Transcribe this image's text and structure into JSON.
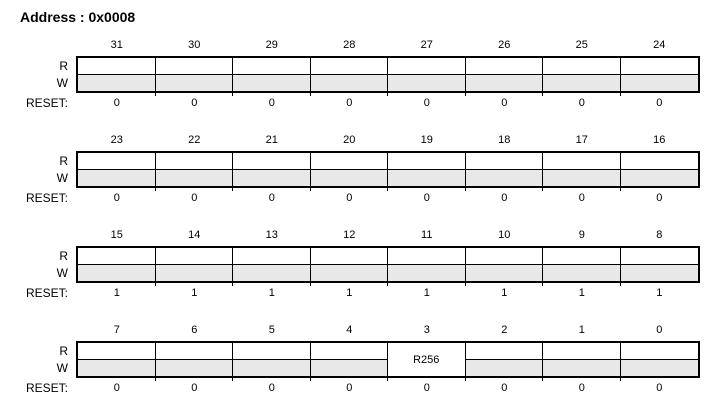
{
  "page": {
    "title": "Address : 0x0008"
  },
  "row_labels": {
    "read": "R",
    "write": "W",
    "reset": "RESET:"
  },
  "colors": {
    "write_row_fill": "#e8e8e8",
    "line": "#000000",
    "text": "#000000",
    "background": "#ffffff"
  },
  "blocks": [
    {
      "bit_numbers": [
        "31",
        "30",
        "29",
        "28",
        "27",
        "26",
        "25",
        "24"
      ],
      "reset_values": [
        "0",
        "0",
        "0",
        "0",
        "0",
        "0",
        "0",
        "0"
      ],
      "fields": []
    },
    {
      "bit_numbers": [
        "23",
        "22",
        "21",
        "20",
        "19",
        "18",
        "17",
        "16"
      ],
      "reset_values": [
        "0",
        "0",
        "0",
        "0",
        "0",
        "0",
        "0",
        "0"
      ],
      "fields": []
    },
    {
      "bit_numbers": [
        "15",
        "14",
        "13",
        "12",
        "11",
        "10",
        "9",
        "8"
      ],
      "reset_values": [
        "1",
        "1",
        "1",
        "1",
        "1",
        "1",
        "1",
        "1"
      ],
      "fields": []
    },
    {
      "bit_numbers": [
        "7",
        "6",
        "5",
        "4",
        "3",
        "2",
        "1",
        "0"
      ],
      "reset_values": [
        "0",
        "0",
        "0",
        "0",
        "0",
        "0",
        "0",
        "0"
      ],
      "fields": [
        {
          "column_index": 4,
          "bit": "3",
          "label": "R256",
          "merged_rw": true
        }
      ]
    }
  ]
}
